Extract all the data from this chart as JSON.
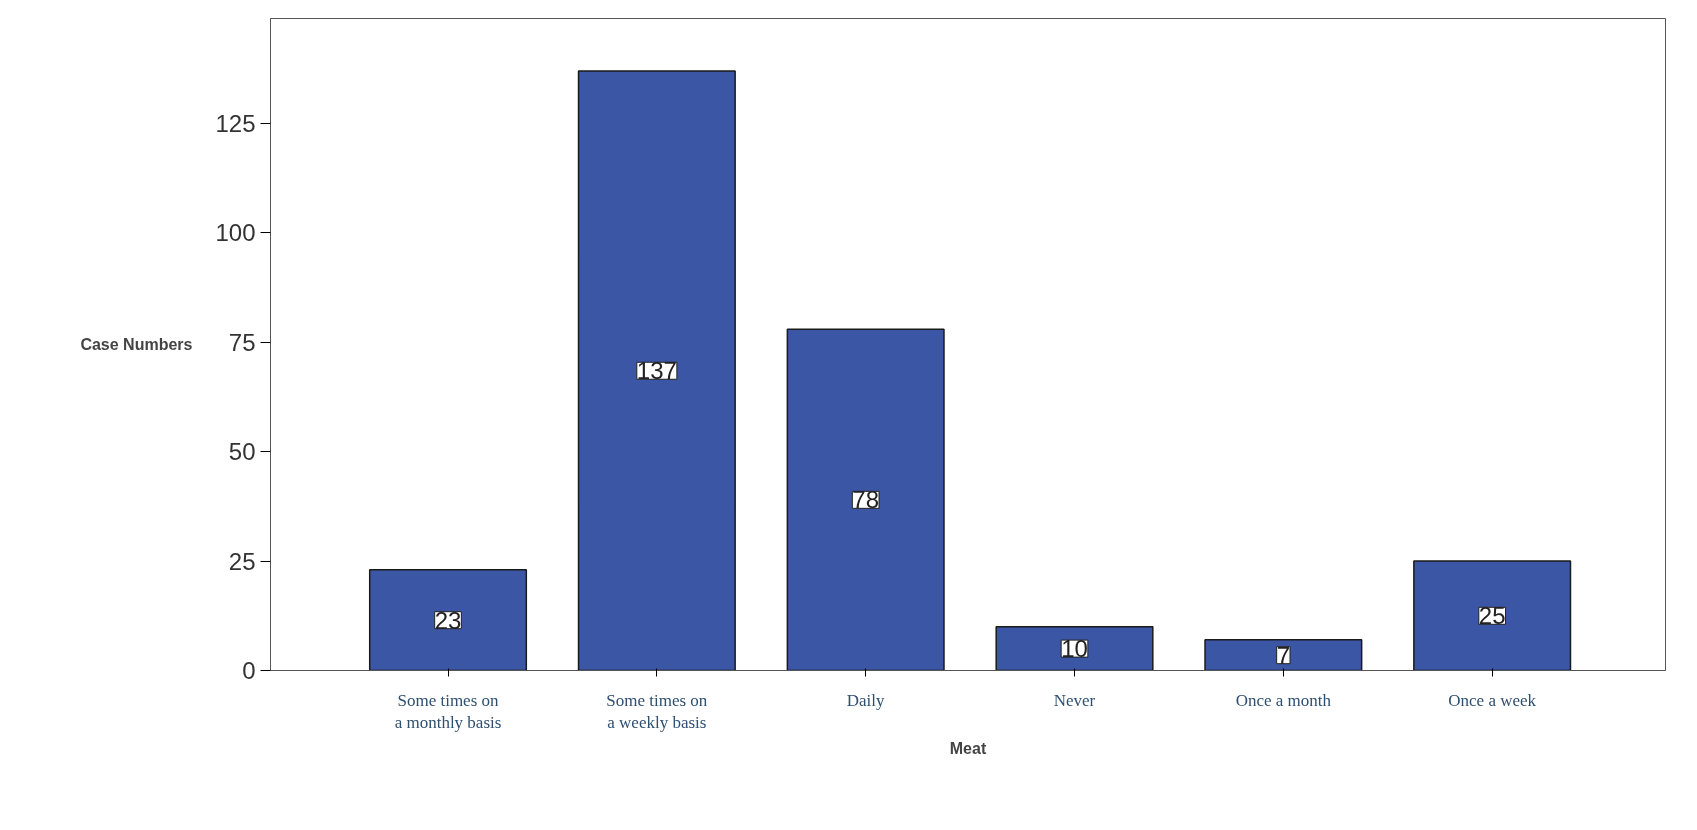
{
  "chart_data": {
    "type": "bar",
    "categories": [
      "Some times on\na monthly basis",
      "Some times on\na weekly basis",
      "Daily",
      "Never",
      "Once a month",
      "Once a week"
    ],
    "values": [
      23,
      137,
      78,
      10,
      7,
      25
    ],
    "color": "#3c56a6",
    "xlabel": "Meat",
    "ylabel": "Case Numbers",
    "ylim": [
      0,
      149
    ],
    "yticks": [
      0,
      25,
      50,
      75,
      100,
      125
    ],
    "data_labels": true,
    "grid": false
  }
}
